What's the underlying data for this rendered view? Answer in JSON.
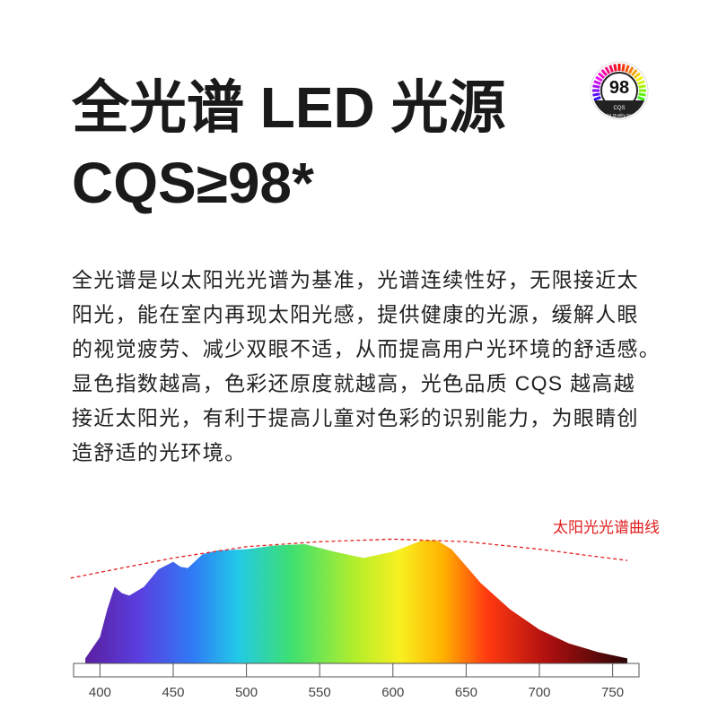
{
  "header": {
    "title_lines": [
      "全光谱 LED 光源",
      "CQS≥98*"
    ]
  },
  "badge": {
    "value": "98",
    "name": "CQS",
    "caption": "Color Quality Scale"
  },
  "paragraph": [
    "全光谱是以太阳光光谱为基准，光谱连续性好，无限接近太",
    "阳光，能在室内再现太阳光感，提供健康的光源，缓解人眼",
    "的视觉疲劳、减少双眼不适，从而提高用户光环境的舒适感。",
    "显色指数越高，色彩还原度就越高，光色品质 CQS  越高越",
    "接近太阳光，有利于提高儿童对色彩的识别能力，为眼睛创",
    "造舒适的光环境。"
  ],
  "chart_data": {
    "type": "area",
    "xlim": [
      382,
      768
    ],
    "xticks": [
      400,
      450,
      500,
      550,
      600,
      650,
      700,
      750
    ],
    "ylim": [
      0,
      100
    ],
    "series": [
      {
        "x": [
          390,
          400,
          405,
          410,
          415,
          420,
          430,
          440,
          450,
          455,
          460,
          470,
          480,
          500,
          520,
          540,
          560,
          580,
          600,
          620,
          630,
          640,
          660,
          680,
          700,
          720,
          740,
          760
        ],
        "values": [
          4,
          21,
          43,
          61,
          56,
          54,
          61,
          75,
          81,
          77,
          76,
          87,
          90,
          91,
          94,
          95,
          89,
          84,
          89,
          98,
          98,
          91,
          64,
          43,
          27,
          16,
          9,
          4
        ]
      },
      {
        "name": "太阳光光谱曲线",
        "color": "#e02020",
        "x": [
          380,
          450,
          500,
          550,
          600,
          650,
          700,
          760
        ],
        "values": [
          68,
          84,
          93,
          97,
          99,
          97,
          91,
          82
        ]
      }
    ]
  }
}
